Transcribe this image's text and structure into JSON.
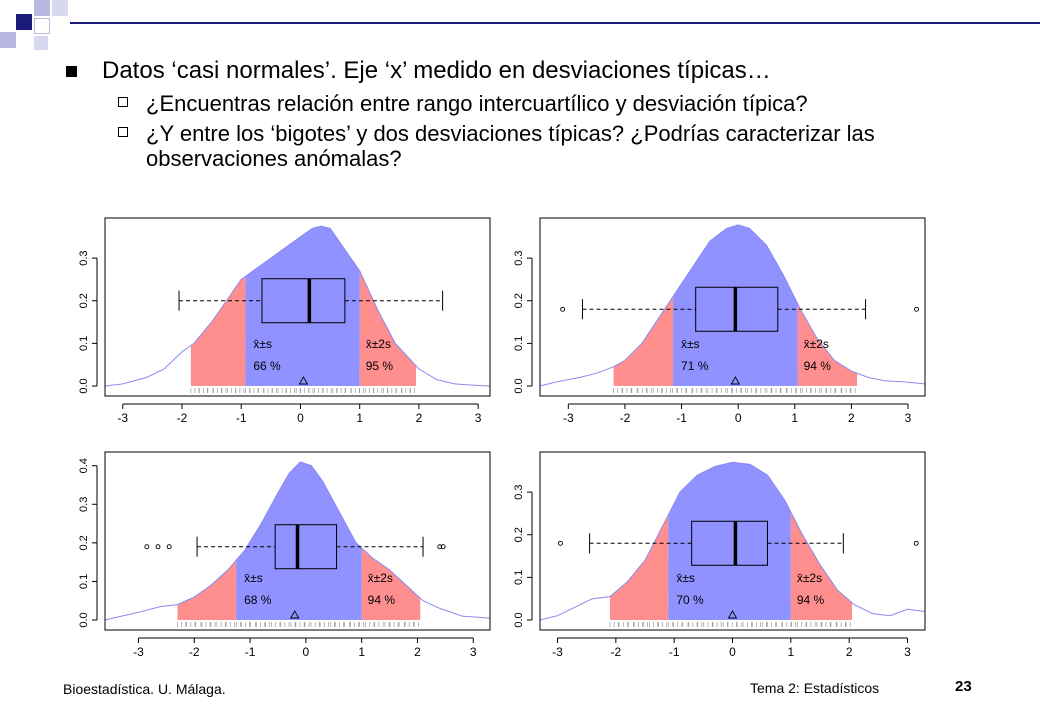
{
  "slide": {
    "bullet_main": "Datos ‘casi normales’. Eje ‘x’ medido en desviaciones típicas…",
    "sub_bullets": [
      "¿Encuentras relación entre rango intercuartílico y desviación típica?",
      "¿Y entre los ‘bigotes’ y dos desviaciones típicas? ¿Podrías caracterizar las observaciones anómalas?"
    ]
  },
  "footer": {
    "left": "Bioestadística. U. Málaga.",
    "center": "Tema 2: Estadísticos",
    "page": "23"
  },
  "colors": {
    "inner_fill": "#8f92ff",
    "outer_fill": "#ff8f8f",
    "density_line": "#8a8af0",
    "deco_navy": "#1a1a7a",
    "deco_light": "#b8b8e0"
  },
  "chart_data": [
    {
      "type": "area",
      "xlim": [
        -3.3,
        3.2
      ],
      "ylim": [
        0,
        0.38
      ],
      "xticks": [
        -3,
        -2,
        -1,
        0,
        1,
        2,
        3
      ],
      "yticks": [
        0.0,
        0.1,
        0.2,
        0.3
      ],
      "density": {
        "x": [
          -3.3,
          -3.0,
          -2.6,
          -2.3,
          -2.0,
          -1.8,
          -1.5,
          -1.2,
          -1.0,
          -0.8,
          -0.5,
          -0.2,
          0.0,
          0.2,
          0.35,
          0.5,
          0.7,
          1.0,
          1.3,
          1.6,
          2.0,
          2.3,
          2.6,
          2.9,
          3.2
        ],
        "y": [
          0.0,
          0.005,
          0.02,
          0.04,
          0.08,
          0.1,
          0.15,
          0.21,
          0.25,
          0.27,
          0.3,
          0.33,
          0.35,
          0.37,
          0.375,
          0.37,
          0.33,
          0.27,
          0.18,
          0.1,
          0.04,
          0.015,
          0.005,
          0.002,
          0.0
        ]
      },
      "bands": {
        "inner": [
          -0.93,
          1.0
        ],
        "outer": [
          -1.85,
          1.95
        ]
      },
      "box": {
        "q1": -0.65,
        "median": 0.15,
        "q3": 0.75,
        "whisker_low": -2.05,
        "whisker_high": 2.4,
        "y": 0.2
      },
      "outliers": [],
      "mean": 0.05,
      "label_inner": "x̄±s",
      "label_inner_pct": "66 %",
      "label_outer": "x̄±2s",
      "label_outer_pct": "95 %"
    },
    {
      "type": "area",
      "xlim": [
        -3.5,
        3.3
      ],
      "ylim": [
        0,
        0.38
      ],
      "xticks": [
        -3,
        -2,
        -1,
        0,
        1,
        2,
        3
      ],
      "yticks": [
        0.0,
        0.1,
        0.2,
        0.3
      ],
      "density": {
        "x": [
          -3.5,
          -3.2,
          -2.8,
          -2.5,
          -2.2,
          -2.0,
          -1.7,
          -1.4,
          -1.1,
          -0.8,
          -0.5,
          -0.2,
          0.0,
          0.2,
          0.5,
          0.8,
          1.1,
          1.4,
          1.7,
          2.0,
          2.3,
          2.6,
          2.9,
          3.3
        ],
        "y": [
          0.0,
          0.01,
          0.02,
          0.03,
          0.045,
          0.06,
          0.1,
          0.16,
          0.22,
          0.28,
          0.34,
          0.37,
          0.378,
          0.37,
          0.33,
          0.26,
          0.18,
          0.11,
          0.06,
          0.035,
          0.02,
          0.012,
          0.01,
          0.005
        ]
      },
      "bands": {
        "inner": [
          -1.15,
          1.05
        ],
        "outer": [
          -2.2,
          2.1
        ]
      },
      "box": {
        "q1": -0.75,
        "median": -0.05,
        "q3": 0.7,
        "whisker_low": -2.75,
        "whisker_high": 2.25,
        "y": 0.18
      },
      "outliers": [
        -3.1,
        3.15
      ],
      "mean": -0.05,
      "label_inner": "x̄±s",
      "label_inner_pct": "71 %",
      "label_outer": "x̄±2s",
      "label_outer_pct": "94 %"
    },
    {
      "type": "area",
      "xlim": [
        -3.6,
        3.3
      ],
      "ylim": [
        0,
        0.42
      ],
      "xticks": [
        -3,
        -2,
        -1,
        0,
        1,
        2,
        3
      ],
      "yticks": [
        0.0,
        0.1,
        0.2,
        0.3,
        0.4
      ],
      "density": {
        "x": [
          -3.6,
          -3.3,
          -3.0,
          -2.6,
          -2.3,
          -2.0,
          -1.7,
          -1.4,
          -1.1,
          -0.8,
          -0.5,
          -0.3,
          -0.1,
          0.1,
          0.3,
          0.6,
          0.9,
          1.2,
          1.5,
          1.8,
          2.1,
          2.4,
          2.8,
          3.3
        ],
        "y": [
          0.0,
          0.01,
          0.02,
          0.035,
          0.04,
          0.06,
          0.09,
          0.13,
          0.18,
          0.25,
          0.33,
          0.38,
          0.41,
          0.4,
          0.36,
          0.28,
          0.2,
          0.16,
          0.13,
          0.09,
          0.05,
          0.03,
          0.01,
          0.005
        ]
      },
      "bands": {
        "inner": [
          -1.25,
          1.0
        ],
        "outer": [
          -2.3,
          2.05
        ]
      },
      "box": {
        "q1": -0.55,
        "median": -0.15,
        "q3": 0.55,
        "whisker_low": -1.95,
        "whisker_high": 2.1,
        "y": 0.19
      },
      "outliers": [
        -2.85,
        -2.65,
        -2.45,
        2.4,
        2.46
      ],
      "mean": -0.2,
      "label_inner": "x̄±s",
      "label_inner_pct": "68 %",
      "label_outer": "x̄±2s",
      "label_outer_pct": "94 %"
    },
    {
      "type": "area",
      "xlim": [
        -3.3,
        3.3
      ],
      "ylim": [
        0,
        0.38
      ],
      "xticks": [
        -3,
        -2,
        -1,
        0,
        1,
        2,
        3
      ],
      "yticks": [
        0.0,
        0.1,
        0.2,
        0.3
      ],
      "density": {
        "x": [
          -3.3,
          -3.0,
          -2.7,
          -2.4,
          -2.1,
          -1.8,
          -1.5,
          -1.2,
          -0.9,
          -0.6,
          -0.3,
          0.0,
          0.3,
          0.6,
          0.9,
          1.2,
          1.5,
          1.8,
          2.1,
          2.4,
          2.7,
          3.0,
          3.3
        ],
        "y": [
          0.0,
          0.01,
          0.03,
          0.05,
          0.055,
          0.09,
          0.14,
          0.22,
          0.3,
          0.34,
          0.36,
          0.37,
          0.365,
          0.34,
          0.28,
          0.2,
          0.13,
          0.07,
          0.035,
          0.015,
          0.01,
          0.025,
          0.02
        ]
      },
      "bands": {
        "inner": [
          -1.1,
          1.0
        ],
        "outer": [
          -2.1,
          2.05
        ]
      },
      "box": {
        "q1": -0.7,
        "median": 0.05,
        "q3": 0.6,
        "whisker_low": -2.45,
        "whisker_high": 1.9,
        "y": 0.18
      },
      "outliers": [
        -2.95,
        3.15
      ],
      "mean": 0.0,
      "label_inner": "x̄±s",
      "label_inner_pct": "70 %",
      "label_outer": "x̄±2s",
      "label_outer_pct": "94 %"
    }
  ]
}
